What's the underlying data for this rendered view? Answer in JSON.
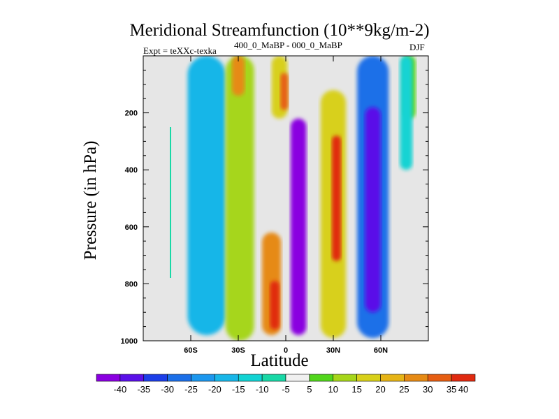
{
  "chart_data": {
    "type": "heatmap",
    "title": "Meridional Streamfunction (10**9kg/m-2)",
    "left_label": "Expt = teXXc-texka",
    "subtitle": "400_0_MaBP - 000_0_MaBP",
    "right_label": "DJF",
    "xlabel": "Latitude",
    "ylabel": "Pressure (in hPa)",
    "xlim": [
      -90,
      90
    ],
    "ylim": [
      1000,
      0
    ],
    "x_ticks": [
      {
        "value": -60,
        "label": "60S"
      },
      {
        "value": -30,
        "label": "30S"
      },
      {
        "value": 0,
        "label": "0"
      },
      {
        "value": 30,
        "label": "30N"
      },
      {
        "value": 60,
        "label": "60N"
      }
    ],
    "y_ticks": [
      {
        "value": 200,
        "label": "200"
      },
      {
        "value": 400,
        "label": "400"
      },
      {
        "value": 600,
        "label": "600"
      },
      {
        "value": 800,
        "label": "800"
      },
      {
        "value": 1000,
        "label": "1000"
      }
    ],
    "fields": [
      {
        "name": "southern-polar-cell",
        "lat_center": -50,
        "lat_halfwidth": 12,
        "p_top": 0,
        "p_bottom": 980,
        "value": -15
      },
      {
        "name": "southern-midlat-band",
        "lat_center": -29,
        "lat_halfwidth": 9,
        "p_top": 0,
        "p_bottom": 1000,
        "value": 15
      },
      {
        "name": "upper-midlat-core",
        "lat_center": -30,
        "lat_halfwidth": 4,
        "p_top": 0,
        "p_bottom": 140,
        "value": 30
      },
      {
        "name": "upper-subtropical",
        "lat_center": -4,
        "lat_halfwidth": 5,
        "p_top": 0,
        "p_bottom": 220,
        "value": 20
      },
      {
        "name": "upper-subtropical-core",
        "lat_center": -1,
        "lat_halfwidth": 2.5,
        "p_top": 60,
        "p_bottom": 190,
        "value": 35
      },
      {
        "name": "lower-equatorial-cell",
        "lat_center": -9,
        "lat_halfwidth": 6,
        "p_top": 620,
        "p_bottom": 980,
        "value": 30
      },
      {
        "name": "lower-equatorial-core",
        "lat_center": -7,
        "lat_halfwidth": 3,
        "p_top": 790,
        "p_bottom": 960,
        "value": 40
      },
      {
        "name": "tropical-cell",
        "lat_center": 8,
        "lat_halfwidth": 5,
        "p_top": 220,
        "p_bottom": 980,
        "value": -40
      },
      {
        "name": "subtropical-band",
        "lat_center": 30,
        "lat_halfwidth": 8,
        "p_top": 120,
        "p_bottom": 990,
        "value": 20
      },
      {
        "name": "subtropical-core",
        "lat_center": 32,
        "lat_halfwidth": 3,
        "p_top": 280,
        "p_bottom": 720,
        "value": 40
      },
      {
        "name": "northern-cell",
        "lat_center": 55,
        "lat_halfwidth": 10,
        "p_top": 0,
        "p_bottom": 990,
        "value": -25
      },
      {
        "name": "northern-core",
        "lat_center": 55,
        "lat_halfwidth": 5,
        "p_top": 180,
        "p_bottom": 900,
        "value": -35
      },
      {
        "name": "polar-upper",
        "lat_center": 78,
        "lat_halfwidth": 4,
        "p_top": 0,
        "p_bottom": 220,
        "value": 10
      },
      {
        "name": "polar-north",
        "lat_center": 76,
        "lat_halfwidth": 4,
        "p_top": 0,
        "p_bottom": 400,
        "value": -10
      }
    ],
    "colorbar": {
      "levels": [
        "-40",
        "-35",
        "-30",
        "-25",
        "-20",
        "-15",
        "-10",
        "-5",
        "5",
        "10",
        "15",
        "20",
        "25",
        "30",
        "35",
        "40"
      ],
      "colors": [
        "#8a00e0",
        "#5a10e8",
        "#1c3ee8",
        "#1c6fe8",
        "#1c97ee",
        "#18b6e8",
        "#12d3d3",
        "#19d8a6",
        "#f0f0f0",
        "#52d61c",
        "#a6d61a",
        "#d8d01a",
        "#e6b416",
        "#e68a14",
        "#e65e12",
        "#e02a10"
      ]
    }
  }
}
